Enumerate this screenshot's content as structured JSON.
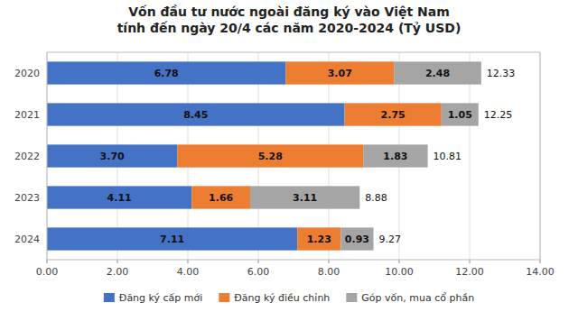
{
  "chart_data": {
    "type": "bar",
    "orientation": "horizontal",
    "stacked": true,
    "data_labels": true,
    "grid": true,
    "legend": "bottom",
    "title": "Vốn đầu tư nước ngoài đăng ký vào Việt Nam\ntính đến ngày 20/4 các năm 2020-2024 (Tỷ USD)",
    "categories": [
      "2024",
      "2023",
      "2022",
      "2021",
      "2020"
    ],
    "series": [
      {
        "name": "Đăng ký cấp mới",
        "color": "#4472C4",
        "values": [
          7.11,
          4.11,
          3.7,
          8.45,
          6.78
        ],
        "value_labels": [
          "7.11",
          "4.11",
          "3.70",
          "8.45",
          "6.78"
        ]
      },
      {
        "name": "Đăng ký điều chỉnh",
        "color": "#ED7D31",
        "values": [
          1.23,
          1.66,
          5.28,
          2.75,
          3.07
        ],
        "value_labels": [
          "1.23",
          "1.66",
          "5.28",
          "2.75",
          "3.07"
        ]
      },
      {
        "name": "Góp vốn, mua cổ phần",
        "color": "#A5A5A5",
        "values": [
          0.93,
          3.11,
          1.83,
          1.05,
          2.48
        ],
        "value_labels": [
          "0.93",
          "3.11",
          "1.83",
          "1.05",
          "2.48"
        ]
      }
    ],
    "totals": [
      9.27,
      8.88,
      10.81,
      12.25,
      12.33
    ],
    "xlim": [
      0,
      14
    ],
    "xticks": [
      {
        "value": 0,
        "label": "0.00"
      },
      {
        "value": 2,
        "label": "2.00"
      },
      {
        "value": 4,
        "label": "4.00"
      },
      {
        "value": 6,
        "label": "6.00"
      },
      {
        "value": 8,
        "label": "8.00"
      },
      {
        "value": 10,
        "label": "10.00"
      },
      {
        "value": 12,
        "label": "12.00"
      },
      {
        "value": 14,
        "label": "14.00"
      }
    ]
  }
}
